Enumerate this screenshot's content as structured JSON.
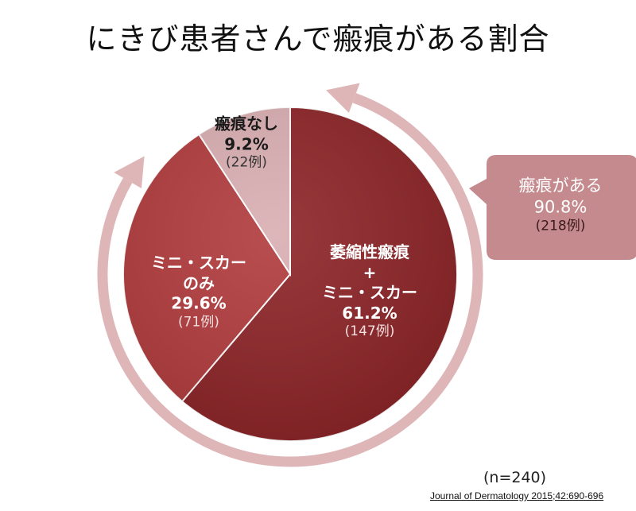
{
  "title": "にきび患者さんで瘢痕がある割合",
  "chart_data": {
    "type": "pie",
    "title": "にきび患者さんで瘢痕がある割合",
    "total_label": "(n=240)",
    "source": "Journal of Dermatology 2015;42:690-696",
    "slices": [
      {
        "name_lines": [
          "萎縮性瘢痕",
          "+",
          "ミニ・スカー"
        ],
        "value": 61.2,
        "value_label": "61.2%",
        "count_label": "(147例)",
        "color": "#8c2326"
      },
      {
        "name_lines": [
          "ミニ・スカー",
          "のみ"
        ],
        "value": 29.6,
        "value_label": "29.6%",
        "count_label": "(71例)",
        "color": "#b13a3c"
      },
      {
        "name_lines": [
          "瘢痕なし"
        ],
        "value": 9.2,
        "value_label": "9.2%",
        "count_label": "(22例)",
        "color": "#d9aeb1"
      }
    ],
    "callout": {
      "label": "瘢痕がある",
      "value_label": "90.8%",
      "count_label": "(218例)",
      "color": "#c48a8d"
    },
    "arrow_color": "#d9a9ac"
  }
}
